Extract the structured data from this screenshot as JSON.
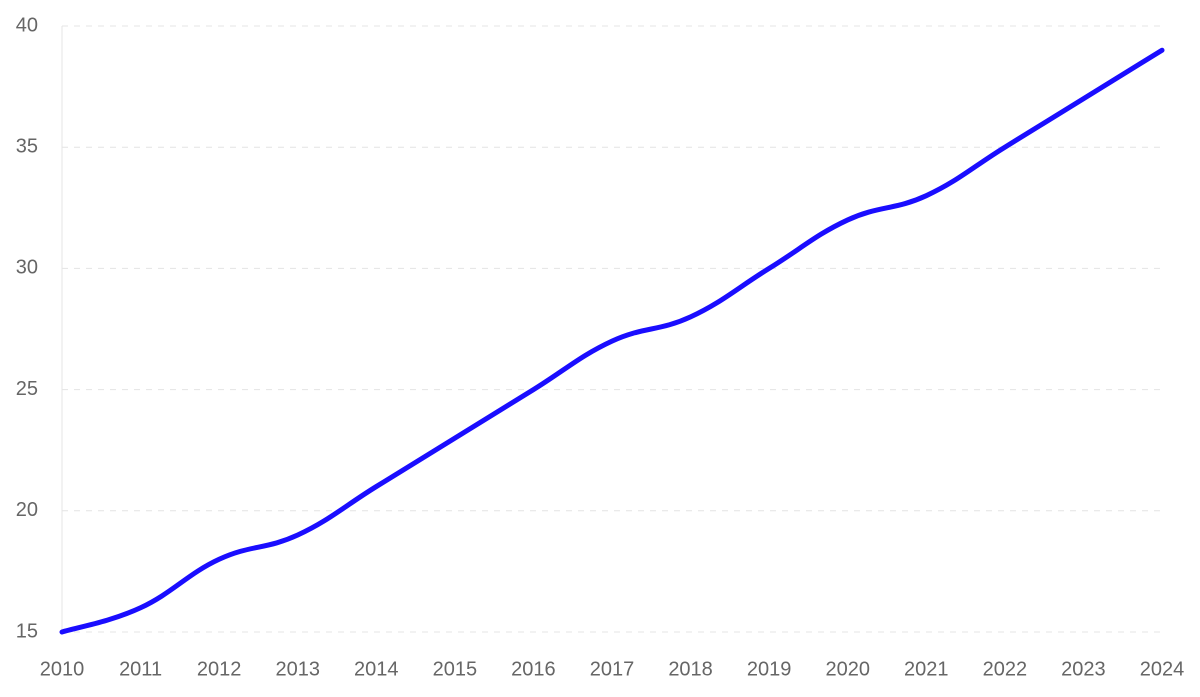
{
  "chart_data": {
    "type": "line",
    "categories": [
      "2010",
      "2011",
      "2012",
      "2013",
      "2014",
      "2015",
      "2016",
      "2017",
      "2018",
      "2019",
      "2020",
      "2021",
      "2022",
      "2023",
      "2024"
    ],
    "series": [
      {
        "color": "#1a0dff",
        "values": [
          15,
          16,
          18,
          19,
          21,
          23,
          25,
          27,
          28,
          30,
          32,
          33,
          35,
          37,
          39
        ]
      }
    ],
    "ylim": [
      15,
      40
    ],
    "yticks": [
      15,
      20,
      25,
      30,
      35,
      40
    ],
    "grid": true
  }
}
